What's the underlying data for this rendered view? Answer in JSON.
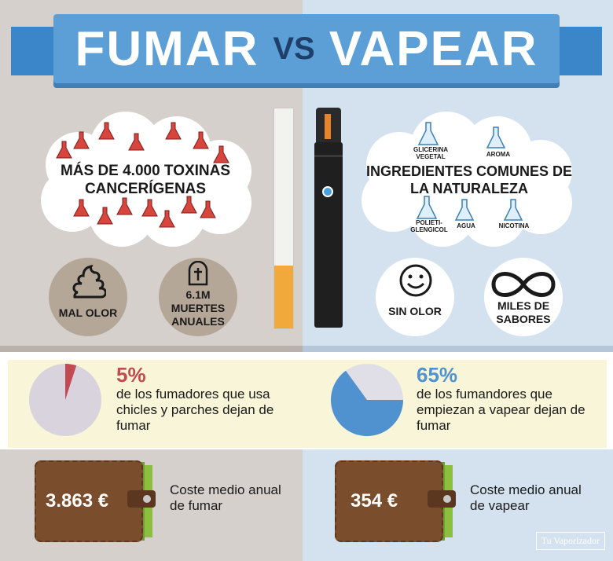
{
  "title": {
    "word1": "FUMAR",
    "vs": "VS",
    "word2": "VAPEAR"
  },
  "smoking": {
    "toxins": "MÁS DE 4.000 TOXINAS CANCERÍGENAS",
    "odor": "MAL OLOR",
    "deaths": "6.1M MUERTES ANUALES"
  },
  "vaping": {
    "ingredients": "INGREDIENTES COMUNES DE LA NATURALEZA",
    "ingredient_labels": [
      "GLICERINA VEGETAL",
      "AROMA",
      "POLIETI-GLENGICOL",
      "AGUA",
      "NICOTINA"
    ],
    "odor": "SIN OLOR",
    "flavors": "MILES DE SABORES"
  },
  "stats": {
    "left_pct": "5%",
    "left_text": "de los fumadores que usa chicles y parches dejan de fumar",
    "left_value": 5,
    "right_pct": "65%",
    "right_text": "de los fumandores que empiezan a vapear dejan de fumar",
    "right_value": 65
  },
  "costs": {
    "smoking_amount": "3.863 €",
    "smoking_text": "Coste medio anual de fumar",
    "vaping_amount": "354 €",
    "vaping_text": "Coste medio anual de vapear"
  },
  "watermark": "Tu Vaporizador",
  "colors": {
    "red": "#c24a52",
    "blue": "#4f92cf",
    "pie_grey": "#d9d3de",
    "pie_grey_right": "#e0dfe8"
  }
}
